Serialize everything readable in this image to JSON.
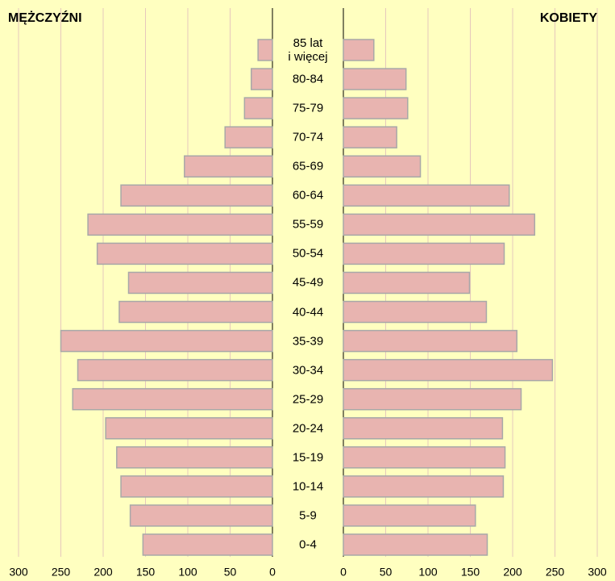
{
  "chart_data": {
    "type": "pyramid",
    "categories": [
      "0-4",
      "5-9",
      "10-14",
      "15-19",
      "20-24",
      "25-29",
      "30-34",
      "35-39",
      "40-44",
      "45-49",
      "50-54",
      "55-59",
      "60-64",
      "65-69",
      "70-74",
      "75-79",
      "80-84",
      "85 lat\ni więcej"
    ],
    "series": [
      {
        "name": "MĘŻCZYŹNI",
        "color": "#e8b4b0",
        "values": [
          153,
          168,
          179,
          184,
          197,
          236,
          230,
          250,
          181,
          170,
          207,
          218,
          179,
          104,
          56,
          33,
          25,
          17
        ]
      },
      {
        "name": "KOBIETY",
        "color": "#e8b4b0",
        "values": [
          170,
          156,
          189,
          191,
          188,
          210,
          247,
          205,
          169,
          149,
          190,
          226,
          196,
          91,
          63,
          76,
          74,
          36
        ]
      }
    ],
    "xlim": [
      0,
      300
    ],
    "xticks": [
      0,
      50,
      100,
      150,
      200,
      250,
      300
    ],
    "grid": true
  }
}
